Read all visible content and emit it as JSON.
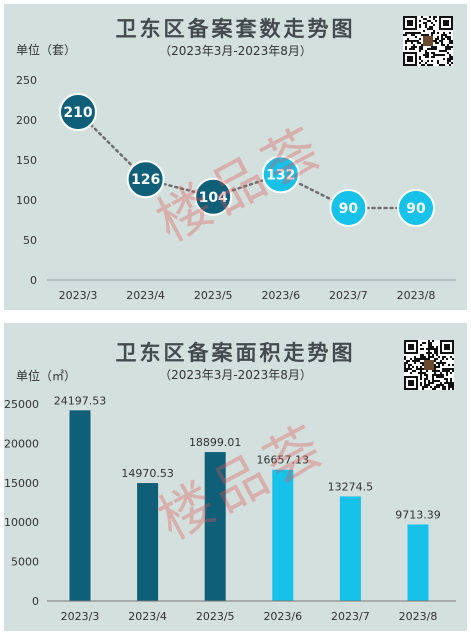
{
  "colors": {
    "dark": "#0e5f77",
    "light": "#16c1ea",
    "bg": "#d3e0de",
    "text": "#333333"
  },
  "watermark": "楼品荟",
  "qr_icon": "qr-code-icon",
  "charts": [
    {
      "title": "卫东区备案套数走势图",
      "subtitle": "（2023年3月-2023年8月）",
      "unit": "单位（套）"
    },
    {
      "title": "卫东区备案面积走势图",
      "subtitle": "（2023年3月-2023年8月）",
      "unit": "单位（㎡）"
    }
  ],
  "chart_data": [
    {
      "type": "line",
      "title": "卫东区备案套数走势图",
      "subtitle": "（2023年3月-2023年8月）",
      "ylabel": "单位（套）",
      "categories": [
        "2023/3",
        "2023/4",
        "2023/5",
        "2023/6",
        "2023/7",
        "2023/8"
      ],
      "values": [
        210,
        126,
        104,
        132,
        90,
        90
      ],
      "labels": [
        "210",
        "126",
        "104",
        "132",
        "90",
        "90"
      ],
      "point_colors": [
        "#0e5f77",
        "#0e5f77",
        "#0e5f77",
        "#16c1ea",
        "#16c1ea",
        "#16c1ea"
      ],
      "ylim": [
        0,
        250
      ],
      "yticks": [
        "0",
        "50",
        "100",
        "150",
        "200",
        "250"
      ],
      "grid": false,
      "line_style": "dotted"
    },
    {
      "type": "bar",
      "title": "卫东区备案面积走势图",
      "subtitle": "（2023年3月-2023年8月）",
      "ylabel": "单位（㎡）",
      "categories": [
        "2023/3",
        "2023/4",
        "2023/5",
        "2023/6",
        "2023/7",
        "2023/8"
      ],
      "values": [
        24197.53,
        14970.53,
        18899.01,
        16657.13,
        13274.5,
        9713.39
      ],
      "labels": [
        "24197.53",
        "14970.53",
        "18899.01",
        "16657.13",
        "13274.5",
        "9713.39"
      ],
      "bar_colors": [
        "#0e5f77",
        "#0e5f77",
        "#0e5f77",
        "#16c1ea",
        "#16c1ea",
        "#16c1ea"
      ],
      "ylim": [
        0,
        25000
      ],
      "yticks": [
        "0",
        "5000",
        "10000",
        "15000",
        "20000",
        "25000"
      ],
      "grid": false
    }
  ]
}
